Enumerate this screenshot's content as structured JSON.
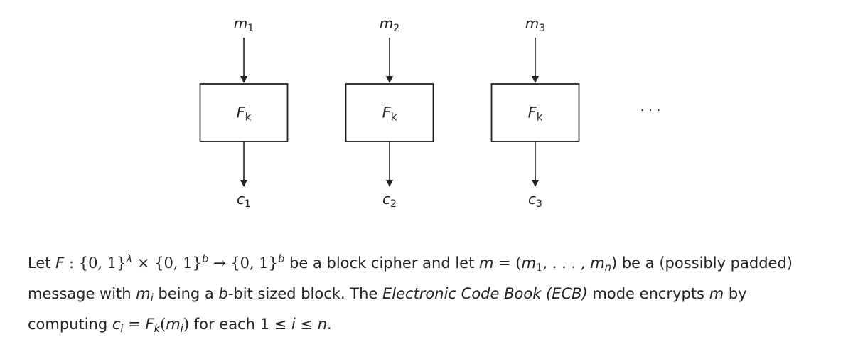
{
  "diagram": {
    "blocks": [
      {
        "input_var": "m",
        "input_sub": "1",
        "func_var": "F",
        "func_sub": "k",
        "output_var": "c",
        "output_sub": "1"
      },
      {
        "input_var": "m",
        "input_sub": "2",
        "func_var": "F",
        "func_sub": "k",
        "output_var": "c",
        "output_sub": "2"
      },
      {
        "input_var": "m",
        "input_sub": "3",
        "func_var": "F",
        "func_sub": "k",
        "output_var": "c",
        "output_sub": "3"
      }
    ],
    "continuation": "· · ·"
  },
  "caption": {
    "l1_let": "Let ",
    "l1_F": "F",
    "l1_colon": " : ",
    "l1_set1": "{0, 1}",
    "l1_lambda": "λ",
    "l1_times": " × ",
    "l1_set2": "{0, 1}",
    "l1_b1": "b",
    "l1_arrow": " → ",
    "l1_set3": "{0, 1}",
    "l1_b2": "b",
    "l1_mid": " be a block cipher and let ",
    "l1_m": "m",
    "l1_eq": " = (",
    "l1_m1": "m",
    "l1_m1_sub": "1",
    "l1_dots": ", . . . , ",
    "l1_mn": "m",
    "l1_mn_sub": "n",
    "l1_tail": ") be a (possibly padded)",
    "l2_a": "message with ",
    "l2_mi": "m",
    "l2_mi_sub": "i",
    "l2_b": " being a ",
    "l2_bvar": "b",
    "l2_c": "-bit sized block. The ",
    "l2_ecb": "Electronic Code Book (ECB)",
    "l2_d": " mode encrypts ",
    "l2_m": "m",
    "l2_e": " by",
    "l3_a": "computing ",
    "l3_c": "c",
    "l3_c_sub": "i",
    "l3_eq": " = ",
    "l3_F": "F",
    "l3_F_sub": "k",
    "l3_paren_open": "(",
    "l3_m": "m",
    "l3_m_sub": "i",
    "l3_paren_close": ")",
    "l3_b": " for each 1 ≤ ",
    "l3_i": "i",
    "l3_le": " ≤ ",
    "l3_n": "n",
    "l3_end": "."
  }
}
